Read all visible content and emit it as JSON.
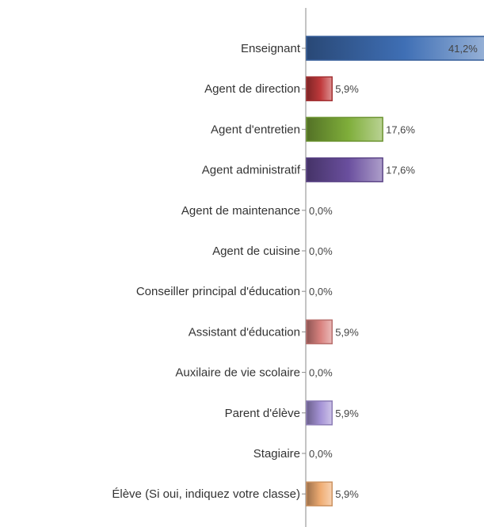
{
  "chart_data": {
    "type": "bar",
    "orientation": "horizontal",
    "categories": [
      "Enseignant",
      "Agent de direction",
      "Agent d'entretien",
      "Agent administratif",
      "Agent de maintenance",
      "Agent de cuisine",
      "Conseiller principal d'éducation",
      "Assistant d'éducation",
      "Auxilaire de vie scolaire",
      "Parent d'élève",
      "Stagiaire",
      "Élève (Si oui, indiquez votre classe)"
    ],
    "values": [
      41.2,
      5.9,
      17.6,
      17.6,
      0.0,
      0.0,
      0.0,
      5.9,
      0.0,
      5.9,
      0.0,
      5.9
    ],
    "value_labels": [
      "41,2%",
      "5,9%",
      "17,6%",
      "17,6%",
      "0,0%",
      "0,0%",
      "0,0%",
      "5,9%",
      "0,0%",
      "5,9%",
      "0,0%",
      "5,9%"
    ],
    "colors": [
      "#3f6fb5",
      "#c0393b",
      "#7fae3a",
      "#6a4f9e",
      "#3f6fb5",
      "#c0393b",
      "#7fae3a",
      "#d9827f",
      "#6a4f9e",
      "#a593d6",
      "#7fae3a",
      "#f0ad73"
    ],
    "title": "",
    "xlabel": "",
    "ylabel": "",
    "xlim": [
      0,
      41.2
    ],
    "grid": false,
    "legend": "none"
  }
}
